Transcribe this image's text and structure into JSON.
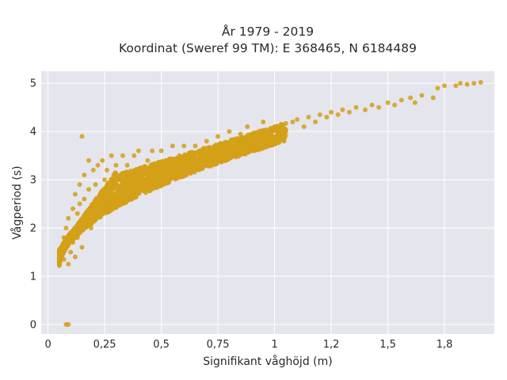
{
  "chart_data": {
    "type": "scatter",
    "title_lines": [
      "År 1979 - 2019",
      "Koordinat (Sweref 99 TM): E 368465, N 6184489"
    ],
    "xlabel": "Signifikant våghöjd (m)",
    "ylabel": "Vågperiod (s)",
    "xlim": [
      -0.03,
      1.97
    ],
    "ylim": [
      -0.2,
      5.25
    ],
    "x_ticks": [
      {
        "value": 0,
        "label": "0"
      },
      {
        "value": 0.25,
        "label": "0,25"
      },
      {
        "value": 0.5,
        "label": "0,5"
      },
      {
        "value": 0.75,
        "label": "0,75"
      },
      {
        "value": 1,
        "label": "1"
      },
      {
        "value": 1.25,
        "label": "1,2"
      },
      {
        "value": 1.5,
        "label": "1,5"
      },
      {
        "value": 1.75,
        "label": "1,8"
      }
    ],
    "y_ticks": [
      {
        "value": 0,
        "label": "0"
      },
      {
        "value": 1,
        "label": "1"
      },
      {
        "value": 2,
        "label": "2"
      },
      {
        "value": 3,
        "label": "3"
      },
      {
        "value": 4,
        "label": "4"
      },
      {
        "value": 5,
        "label": "5"
      }
    ],
    "grid": true,
    "marker_color": "#D4A017",
    "background_color": "#E5E5EE",
    "points": [
      [
        0.08,
        0.0
      ],
      [
        0.09,
        0.0
      ],
      [
        0.05,
        1.5
      ],
      [
        0.05,
        1.3
      ],
      [
        0.06,
        1.6
      ],
      [
        0.06,
        1.4
      ],
      [
        0.07,
        1.8
      ],
      [
        0.07,
        1.35
      ],
      [
        0.08,
        2.0
      ],
      [
        0.08,
        1.6
      ],
      [
        0.09,
        1.25
      ],
      [
        0.09,
        2.2
      ],
      [
        0.1,
        1.9
      ],
      [
        0.1,
        1.5
      ],
      [
        0.11,
        2.4
      ],
      [
        0.11,
        1.7
      ],
      [
        0.12,
        2.7
      ],
      [
        0.12,
        2.0
      ],
      [
        0.12,
        1.4
      ],
      [
        0.13,
        2.3
      ],
      [
        0.13,
        1.8
      ],
      [
        0.14,
        2.9
      ],
      [
        0.14,
        2.5
      ],
      [
        0.15,
        2.1
      ],
      [
        0.15,
        1.6
      ],
      [
        0.15,
        3.9
      ],
      [
        0.16,
        3.1
      ],
      [
        0.16,
        2.6
      ],
      [
        0.17,
        2.2
      ],
      [
        0.18,
        3.4
      ],
      [
        0.18,
        2.8
      ],
      [
        0.19,
        2.0
      ],
      [
        0.2,
        3.2
      ],
      [
        0.2,
        2.5
      ],
      [
        0.21,
        2.9
      ],
      [
        0.22,
        3.3
      ],
      [
        0.22,
        2.3
      ],
      [
        0.23,
        2.7
      ],
      [
        0.24,
        3.4
      ],
      [
        0.25,
        3.0
      ],
      [
        0.25,
        2.4
      ],
      [
        0.26,
        3.2
      ],
      [
        0.27,
        2.8
      ],
      [
        0.28,
        3.5
      ],
      [
        0.28,
        2.6
      ],
      [
        0.3,
        3.3
      ],
      [
        0.3,
        2.7
      ],
      [
        0.32,
        3.1
      ],
      [
        0.33,
        3.5
      ],
      [
        0.34,
        2.8
      ],
      [
        0.35,
        3.3
      ],
      [
        0.36,
        3.0
      ],
      [
        0.38,
        3.5
      ],
      [
        0.38,
        2.7
      ],
      [
        0.4,
        3.2
      ],
      [
        0.4,
        3.6
      ],
      [
        0.42,
        3.0
      ],
      [
        0.44,
        3.4
      ],
      [
        0.45,
        2.9
      ],
      [
        0.46,
        3.6
      ],
      [
        0.48,
        3.3
      ],
      [
        0.5,
        3.6
      ],
      [
        0.5,
        3.1
      ],
      [
        0.52,
        3.4
      ],
      [
        0.55,
        3.7
      ],
      [
        0.55,
        3.2
      ],
      [
        0.58,
        3.5
      ],
      [
        0.6,
        3.7
      ],
      [
        0.62,
        3.4
      ],
      [
        0.65,
        3.7
      ],
      [
        0.68,
        3.5
      ],
      [
        0.7,
        3.8
      ],
      [
        0.72,
        3.6
      ],
      [
        0.75,
        3.9
      ],
      [
        0.78,
        3.7
      ],
      [
        0.8,
        4.0
      ],
      [
        0.83,
        3.8
      ],
      [
        0.85,
        3.95
      ],
      [
        0.88,
        4.1
      ],
      [
        0.9,
        3.85
      ],
      [
        0.93,
        4.0
      ],
      [
        0.95,
        4.2
      ],
      [
        0.98,
        3.95
      ],
      [
        1.0,
        4.1
      ],
      [
        1.03,
        4.15
      ],
      [
        1.05,
        4.0
      ],
      [
        1.08,
        4.2
      ],
      [
        1.1,
        4.25
      ],
      [
        1.13,
        4.1
      ],
      [
        1.15,
        4.3
      ],
      [
        1.18,
        4.2
      ],
      [
        1.2,
        4.35
      ],
      [
        1.23,
        4.3
      ],
      [
        1.25,
        4.4
      ],
      [
        1.28,
        4.35
      ],
      [
        1.3,
        4.45
      ],
      [
        1.33,
        4.4
      ],
      [
        1.36,
        4.5
      ],
      [
        1.4,
        4.45
      ],
      [
        1.43,
        4.55
      ],
      [
        1.46,
        4.5
      ],
      [
        1.5,
        4.6
      ],
      [
        1.53,
        4.55
      ],
      [
        1.56,
        4.65
      ],
      [
        1.6,
        4.7
      ],
      [
        1.62,
        4.6
      ],
      [
        1.65,
        4.75
      ],
      [
        1.7,
        4.7
      ],
      [
        1.72,
        4.9
      ],
      [
        1.75,
        4.95
      ],
      [
        1.8,
        4.95
      ],
      [
        1.82,
        5.0
      ],
      [
        1.85,
        4.98
      ],
      [
        1.88,
        5.0
      ],
      [
        1.91,
        5.02
      ]
    ]
  }
}
